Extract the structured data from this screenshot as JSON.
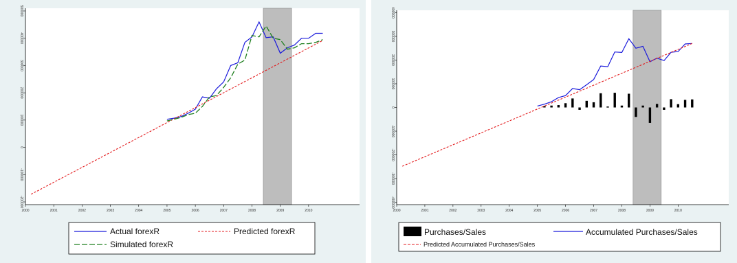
{
  "colors": {
    "actual": "#1a1adb",
    "simulated": "#1f7f1f",
    "predicted": "#e31a1c",
    "bars": "#000000",
    "shade": "#bdbdbd",
    "panel_bg": "#eaf2f3"
  },
  "chart_data": [
    {
      "type": "line",
      "title": "",
      "xlabel": "",
      "ylabel": "",
      "xlim": [
        2000,
        2011.8
      ],
      "ylim": [
        -210000,
        510000
      ],
      "x_ticks": [
        "2000",
        "2001",
        "2002",
        "2003",
        "2004",
        "2005",
        "2006",
        "2007",
        "2008",
        "2009",
        "2010"
      ],
      "y_ticks": [
        "-200000",
        "-100000",
        "0",
        "100000",
        "200000",
        "300000",
        "400000",
        "500000"
      ],
      "shaded_region": [
        2008.4,
        2009.4
      ],
      "grid": false,
      "legend_position": "bottom",
      "legend": [
        "Actual forexR",
        "Predicted forexR",
        "Simulated forexR"
      ],
      "series": [
        {
          "name": "Actual forexR",
          "style": "solid",
          "x": [
            2005.0,
            2005.25,
            2005.5,
            2005.75,
            2006.0,
            2006.25,
            2006.5,
            2006.75,
            2007.0,
            2007.25,
            2007.5,
            2007.75,
            2008.0,
            2008.25,
            2008.5,
            2008.75,
            2009.0,
            2009.25,
            2009.5,
            2009.75,
            2010.0,
            2010.25,
            2010.5
          ],
          "y": [
            103000,
            107000,
            113000,
            125000,
            140000,
            185000,
            180000,
            215000,
            240000,
            300000,
            310000,
            385000,
            405000,
            460000,
            402000,
            405000,
            345000,
            365000,
            375000,
            400000,
            400000,
            418000,
            418000
          ]
        },
        {
          "name": "Predicted forexR",
          "style": "dashed",
          "x": [
            2000.2,
            2010.5
          ],
          "y": [
            -172000,
            392000
          ]
        },
        {
          "name": "Simulated forexR",
          "style": "longdash",
          "x": [
            2005.0,
            2005.25,
            2005.5,
            2005.75,
            2006.0,
            2006.25,
            2006.5,
            2006.75,
            2007.0,
            2007.25,
            2007.5,
            2007.75,
            2008.0,
            2008.25,
            2008.5,
            2008.75,
            2009.0,
            2009.25,
            2009.5,
            2009.75,
            2010.0,
            2010.25,
            2010.5
          ],
          "y": [
            97000,
            103000,
            110000,
            120000,
            125000,
            150000,
            185000,
            190000,
            220000,
            255000,
            305000,
            320000,
            410000,
            405000,
            445000,
            400000,
            395000,
            360000,
            365000,
            380000,
            380000,
            385000,
            395000
          ]
        }
      ]
    },
    {
      "type": "line",
      "title": "",
      "xlabel": "",
      "ylabel": "",
      "xlim": [
        2000,
        2011.8
      ],
      "ylim": [
        -410000,
        410000
      ],
      "x_ticks": [
        "2000",
        "2001",
        "2002",
        "2003",
        "2004",
        "2005",
        "2006",
        "2007",
        "2008",
        "2009",
        "2010"
      ],
      "y_ticks": [
        "-400000",
        "-300000",
        "-200000",
        "-100000",
        "0",
        "100000",
        "200000",
        "300000",
        "400000"
      ],
      "shaded_region": [
        2008.4,
        2009.4
      ],
      "grid": false,
      "legend_position": "bottom",
      "legend": [
        "Purchases/Sales",
        "Accumulated Purchases/Sales",
        "Predicted Accumulated Purchases/Sales"
      ],
      "series": [
        {
          "name": "Purchases/Sales",
          "style": "bar",
          "x": [
            2005.25,
            2005.5,
            2005.75,
            2006.0,
            2006.25,
            2006.5,
            2006.75,
            2007.0,
            2007.25,
            2007.5,
            2007.75,
            2008.0,
            2008.25,
            2008.5,
            2008.75,
            2009.0,
            2009.25,
            2009.5,
            2009.75,
            2010.0,
            2010.25,
            2010.5
          ],
          "y": [
            6000,
            8000,
            10000,
            18000,
            38000,
            -10000,
            28000,
            22000,
            60000,
            4000,
            62000,
            8000,
            58000,
            -40000,
            8000,
            -65000,
            15000,
            -10000,
            35000,
            14000,
            32000,
            34000
          ]
        },
        {
          "name": "Accumulated Purchases/Sales",
          "style": "solid",
          "x": [
            2005.0,
            2005.25,
            2005.5,
            2005.75,
            2006.0,
            2006.25,
            2006.5,
            2006.75,
            2007.0,
            2007.25,
            2007.5,
            2007.75,
            2008.0,
            2008.25,
            2008.5,
            2008.75,
            2009.0,
            2009.25,
            2009.5,
            2009.75,
            2010.0,
            2010.25,
            2010.5
          ],
          "y": [
            6000,
            14000,
            24000,
            42000,
            50000,
            80000,
            75000,
            96000,
            118000,
            175000,
            172000,
            234000,
            232000,
            290000,
            250000,
            258000,
            193000,
            208000,
            198000,
            233000,
            236000,
            268000,
            270000
          ]
        },
        {
          "name": "Predicted Accumulated Purchases/Sales",
          "style": "dashed",
          "x": [
            2000.2,
            2010.5
          ],
          "y": [
            -248000,
            270000
          ]
        }
      ]
    }
  ]
}
